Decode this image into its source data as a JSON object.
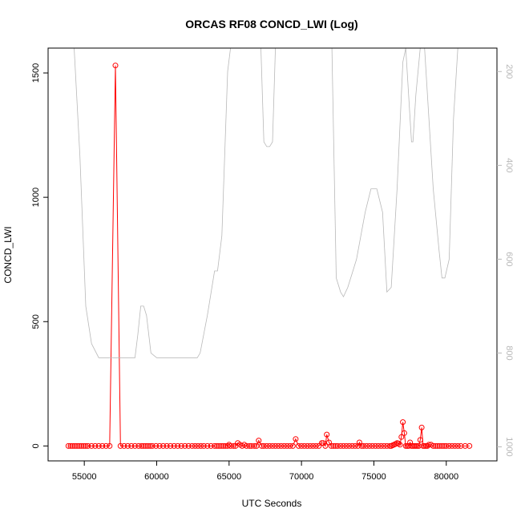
{
  "chart_data": {
    "type": "scatter",
    "title": "ORCAS RF08 CONCD_LWI (Log)",
    "xlabel": "UTC Seconds",
    "ylabel": "CONCD_LWI",
    "xlim": [
      52500,
      83500
    ],
    "ylim": [
      -60,
      1600
    ],
    "x_ticks": [
      55000,
      60000,
      65000,
      70000,
      75000,
      80000
    ],
    "y_ticks": [
      0,
      500,
      1000,
      1500
    ],
    "right_axis": {
      "ylim_inverted": [
        150,
        1030
      ],
      "ticks": [
        200,
        400,
        600,
        800,
        1000
      ],
      "color": "#b8b8b8"
    },
    "series": [
      {
        "color": "#ff0000",
        "mode": "points+line",
        "x": [
          53900,
          54050,
          54200,
          54350,
          54500,
          54650,
          54800,
          54950,
          55100,
          55250,
          55500,
          55750,
          56000,
          56250,
          56500,
          56750,
          57150,
          57500,
          57750,
          58000,
          58250,
          58500,
          58750,
          58950,
          59100,
          59250,
          59400,
          59550,
          59700,
          59950,
          60200,
          60450,
          60700,
          60950,
          61200,
          61450,
          61700,
          61950,
          62200,
          62450,
          62650,
          62850,
          63050,
          63250,
          63500,
          63750,
          64000,
          64150,
          64300,
          64450,
          64600,
          64750,
          64900,
          65000,
          65100,
          65300,
          65450,
          65600,
          65750,
          65900,
          66050,
          66200,
          66400,
          66550,
          66750,
          66900,
          67050,
          67250,
          67400,
          67600,
          67800,
          68000,
          68200,
          68400,
          68600,
          68800,
          69000,
          69200,
          69400,
          69600,
          69800,
          70000,
          70200,
          70400,
          70600,
          70800,
          71000,
          71200,
          71400,
          71500,
          71650,
          71750,
          71900,
          72050,
          72200,
          72350,
          72500,
          72700,
          72900,
          73100,
          73300,
          73500,
          73700,
          73900,
          74000,
          74150,
          74300,
          74500,
          74700,
          74900,
          75100,
          75300,
          75500,
          75700,
          75900,
          76100,
          76200,
          76300,
          76400,
          76500,
          76600,
          76700,
          76800,
          76900,
          77000,
          77100,
          77200,
          77300,
          77400,
          77500,
          77600,
          77700,
          77800,
          77900,
          78000,
          78100,
          78200,
          78300,
          78400,
          78500,
          78600,
          78700,
          78800,
          78950,
          79100,
          79250,
          79400,
          79550,
          79700,
          79850,
          80000,
          80200,
          80400,
          80600,
          80800,
          81000,
          81300,
          81600
        ],
        "y": [
          0,
          0,
          0,
          0,
          0,
          0,
          0,
          0,
          0,
          0,
          0,
          0,
          0,
          0,
          0,
          0,
          1530,
          0,
          0,
          0,
          0,
          0,
          0,
          0,
          0,
          0,
          0,
          0,
          0,
          0,
          0,
          0,
          0,
          0,
          0,
          0,
          0,
          0,
          0,
          0,
          0,
          0,
          0,
          0,
          0,
          0,
          0,
          0,
          0,
          0,
          0,
          0,
          0,
          5,
          0,
          0,
          0,
          12,
          5,
          0,
          5,
          0,
          0,
          0,
          0,
          0,
          22,
          0,
          0,
          0,
          0,
          0,
          0,
          0,
          0,
          0,
          0,
          0,
          0,
          28,
          0,
          0,
          0,
          0,
          0,
          0,
          0,
          0,
          12,
          12,
          0,
          46,
          14,
          0,
          0,
          0,
          0,
          0,
          0,
          0,
          0,
          0,
          0,
          0,
          14,
          0,
          0,
          0,
          0,
          0,
          0,
          0,
          0,
          0,
          0,
          0,
          0,
          3,
          5,
          8,
          12,
          10,
          5,
          36,
          96,
          52,
          0,
          0,
          0,
          14,
          0,
          0,
          0,
          0,
          0,
          0,
          24,
          74,
          0,
          0,
          0,
          0,
          5,
          5,
          0,
          0,
          0,
          0,
          0,
          0,
          0,
          0,
          0,
          0,
          0,
          0,
          0,
          0
        ]
      },
      {
        "color": "#b8b8b8",
        "mode": "line",
        "axis": "right",
        "x": [
          53900,
          54300,
          54700,
          55100,
          55500,
          56000,
          57000,
          58000,
          58500,
          58700,
          58900,
          59100,
          59300,
          59600,
          60000,
          61000,
          62000,
          62800,
          63000,
          63500,
          64000,
          64200,
          64500,
          64900,
          65100,
          65300,
          65500,
          65800,
          66000,
          66200,
          66500,
          66700,
          66900,
          67200,
          67400,
          67600,
          67800,
          68000,
          68200,
          68400,
          68700,
          69000,
          69500,
          69800,
          70000,
          70300,
          70700,
          71100,
          71600,
          71900,
          72100,
          72400,
          72700,
          72900,
          73200,
          73500,
          73800,
          74100,
          74400,
          74800,
          75200,
          75600,
          75900,
          76200,
          76600,
          77000,
          77200,
          77500,
          77600,
          77700,
          77900,
          78200,
          78500,
          78800,
          79100,
          79500,
          79700,
          79900,
          80200,
          80500,
          80800,
          81200
        ],
        "y": [
          150,
          150,
          380,
          700,
          780,
          810,
          810,
          810,
          810,
          760,
          700,
          700,
          720,
          800,
          810,
          810,
          810,
          810,
          800,
          720,
          625,
          625,
          550,
          200,
          150,
          150,
          140,
          150,
          140,
          150,
          140,
          150,
          150,
          150,
          350,
          360,
          360,
          350,
          150,
          150,
          150,
          150,
          140,
          150,
          140,
          150,
          140,
          150,
          150,
          150,
          150,
          640,
          670,
          680,
          660,
          630,
          600,
          550,
          500,
          450,
          450,
          500,
          670,
          660,
          450,
          180,
          150,
          300,
          350,
          350,
          250,
          150,
          150,
          300,
          450,
          580,
          640,
          640,
          600,
          300,
          150,
          150
        ]
      }
    ]
  }
}
